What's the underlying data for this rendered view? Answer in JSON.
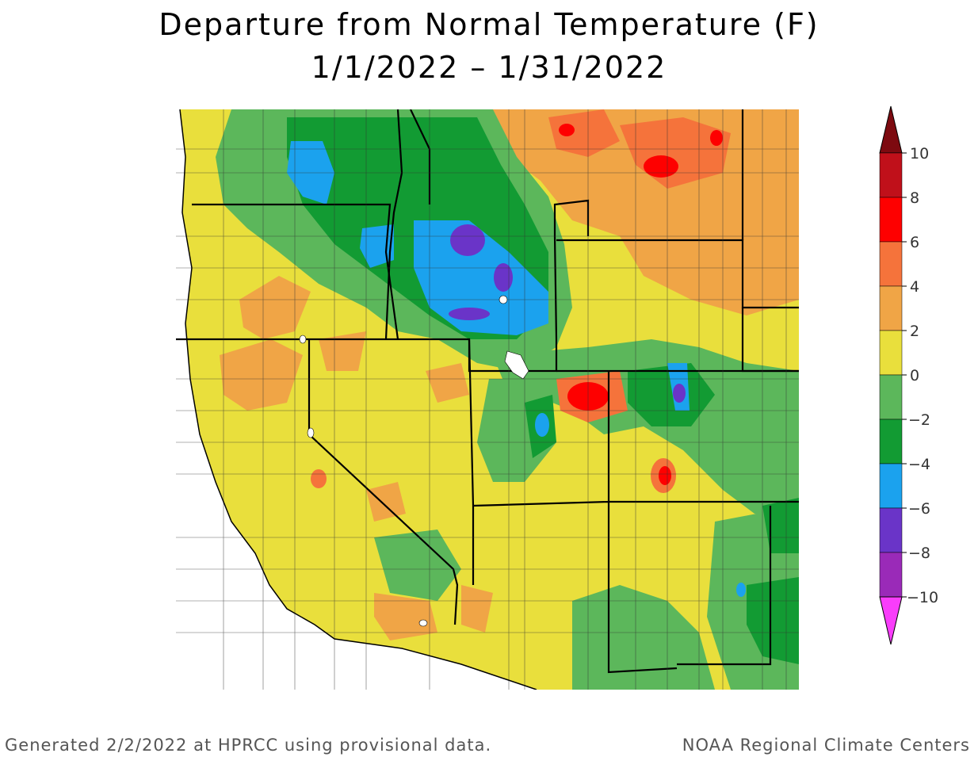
{
  "title": {
    "line1": "Departure from Normal Temperature (F)",
    "line2": "1/1/2022 – 1/31/2022"
  },
  "footer": {
    "left": "Generated 2/2/2022 at HPRCC using provisional data.",
    "right": "NOAA Regional Climate Centers"
  },
  "legend": {
    "labels": [
      "10",
      "8",
      "6",
      "4",
      "2",
      "0",
      "−2",
      "−4",
      "−6",
      "−8",
      "−10"
    ],
    "colors": {
      "above_10": "#7d0a10",
      "8_to_10": "#c0101a",
      "6_to_8": "#fe0000",
      "4_to_6": "#f5733b",
      "2_to_4": "#f0a546",
      "0_to_2": "#e9df3c",
      "m2_to_0": "#5cb75b",
      "m4_to_m2": "#129b33",
      "m6_to_m4": "#1ba2ee",
      "m8_to_m6": "#6a34c8",
      "m10_to_m8": "#9a2ab8",
      "below_m10": "#f93dfb"
    }
  }
}
